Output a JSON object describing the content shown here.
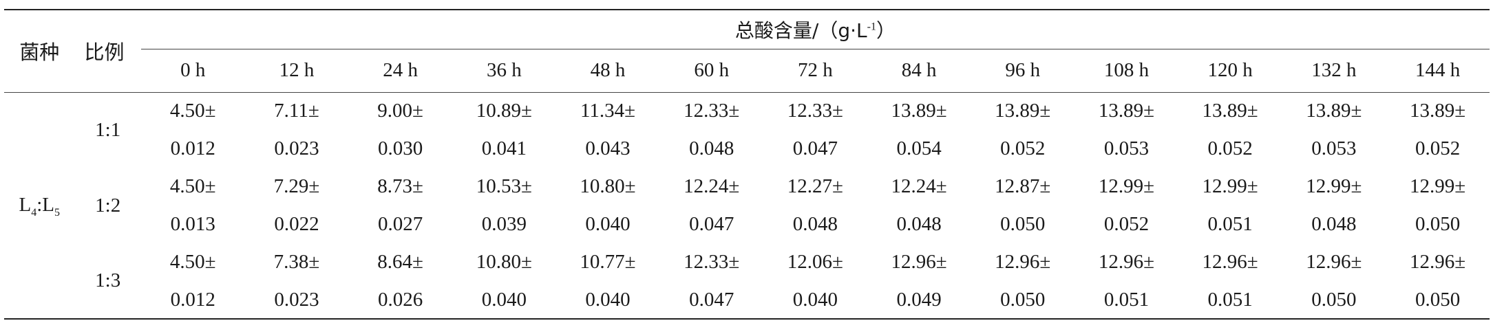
{
  "header": {
    "strain_label": "菌种",
    "ratio_label": "比例",
    "group_title_prefix": "总酸含量/（g·L",
    "group_title_sup": "-1",
    "group_title_suffix": "）",
    "time_points": [
      "0 h",
      "12 h",
      "24 h",
      "36 h",
      "48 h",
      "60 h",
      "72 h",
      "84 h",
      "96 h",
      "108 h",
      "120 h",
      "132 h",
      "144 h"
    ]
  },
  "strain": {
    "L_a": "L",
    "sub_a": "4",
    "colon": ":",
    "L_b": "L",
    "sub_b": "5"
  },
  "rows": [
    {
      "ratio": "1:1",
      "means": [
        "4.50±",
        "7.11±",
        "9.00±",
        "10.89±",
        "11.34±",
        "12.33±",
        "12.33±",
        "13.89±",
        "13.89±",
        "13.89±",
        "13.89±",
        "13.89±",
        "13.89±"
      ],
      "sds": [
        "0.012",
        "0.023",
        "0.030",
        "0.041",
        "0.043",
        "0.048",
        "0.047",
        "0.054",
        "0.052",
        "0.053",
        "0.052",
        "0.053",
        "0.052"
      ]
    },
    {
      "ratio": "1:2",
      "means": [
        "4.50±",
        "7.29±",
        "8.73±",
        "10.53±",
        "10.80±",
        "12.24±",
        "12.27±",
        "12.24±",
        "12.87±",
        "12.99±",
        "12.99±",
        "12.99±",
        "12.99±"
      ],
      "sds": [
        "0.013",
        "0.022",
        "0.027",
        "0.039",
        "0.040",
        "0.047",
        "0.048",
        "0.048",
        "0.050",
        "0.052",
        "0.051",
        "0.048",
        "0.050"
      ]
    },
    {
      "ratio": "1:3",
      "means": [
        "4.50±",
        "7.38±",
        "8.64±",
        "10.80±",
        "10.77±",
        "12.33±",
        "12.06±",
        "12.96±",
        "12.96±",
        "12.96±",
        "12.96±",
        "12.96±",
        "12.96±"
      ],
      "sds": [
        "0.012",
        "0.023",
        "0.026",
        "0.040",
        "0.040",
        "0.047",
        "0.040",
        "0.049",
        "0.050",
        "0.051",
        "0.051",
        "0.050",
        "0.050"
      ]
    }
  ]
}
